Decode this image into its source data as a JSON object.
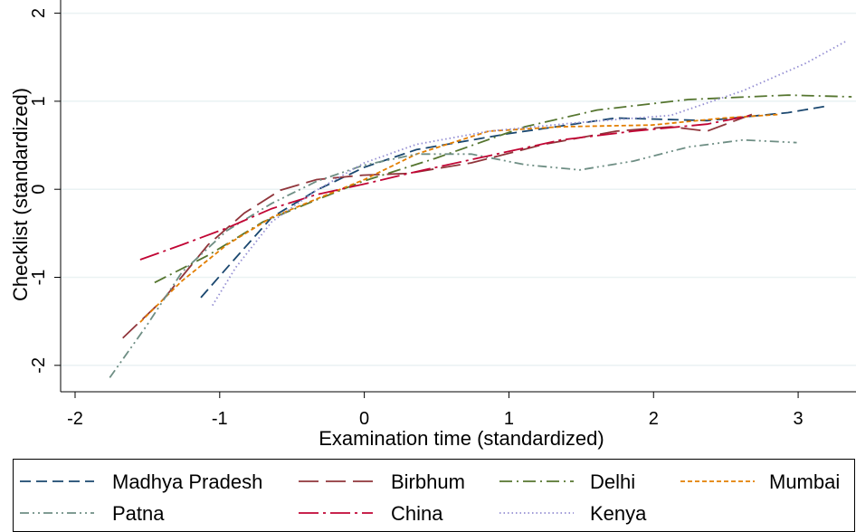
{
  "chart_data": {
    "type": "line",
    "x_label": "Examination time (standardized)",
    "y_label": "Checklist (standardized)",
    "xlim": [
      -2.1,
      3.4
    ],
    "ylim": [
      -2.3,
      2.15
    ],
    "xticks": [
      -2,
      -1,
      0,
      1,
      2,
      3
    ],
    "yticks": [
      -2,
      -1,
      0,
      1,
      2
    ],
    "grid": true,
    "legend_position": "bottom",
    "series": [
      {
        "name": "Madhya Pradesh",
        "color": "#1a476f",
        "dash": "12,6",
        "x": [
          -1.13,
          -0.89,
          -0.64,
          -0.33,
          0,
          0.36,
          0.99,
          1.74,
          2.37,
          2.93,
          3.18
        ],
        "values": [
          -1.23,
          -0.78,
          -0.32,
          -0.01,
          0.25,
          0.45,
          0.63,
          0.81,
          0.78,
          0.87,
          0.94
        ]
      },
      {
        "name": "Birbhum",
        "color": "#90353b",
        "dash": "22,8",
        "x": [
          -1.67,
          -1.39,
          -1.08,
          -0.83,
          -0.58,
          -0.33,
          -0.01,
          0.3,
          0.74,
          1.24,
          1.74,
          2.12,
          2.37,
          2.68
        ],
        "values": [
          -1.69,
          -1.25,
          -0.63,
          -0.27,
          -0.01,
          0.11,
          0.16,
          0.18,
          0.3,
          0.51,
          0.66,
          0.71,
          0.66,
          0.85
        ]
      },
      {
        "name": "Delhi",
        "color": "#55752f",
        "dash": "14,5,2,5",
        "x": [
          -1.45,
          -1.08,
          -0.7,
          -0.39,
          -0.01,
          0.49,
          1.11,
          1.61,
          2.24,
          2.93,
          3.37
        ],
        "values": [
          -1.06,
          -0.75,
          -0.37,
          -0.16,
          0.09,
          0.35,
          0.71,
          0.9,
          1.02,
          1.07,
          1.05
        ]
      },
      {
        "name": "Mumbai",
        "color": "#e37e00",
        "dash": "5,3",
        "x": [
          -1.55,
          -1.26,
          -0.95,
          -0.64,
          -0.33,
          0,
          0.36,
          0.86,
          1.36,
          1.99,
          2.49,
          2.87
        ],
        "values": [
          -1.51,
          -1.04,
          -0.63,
          -0.32,
          -0.11,
          0.11,
          0.4,
          0.66,
          0.71,
          0.73,
          0.81,
          0.85
        ]
      },
      {
        "name": "Patna",
        "color": "#6e8e84",
        "dash": "10,4,2,4,2,4",
        "x": [
          -1.76,
          -1.51,
          -1.26,
          -0.95,
          -0.64,
          -0.33,
          -0.01,
          0.36,
          0.74,
          1.11,
          1.49,
          1.86,
          2.24,
          2.62,
          2.99
        ],
        "values": [
          -2.14,
          -1.56,
          -0.94,
          -0.47,
          -0.16,
          0.09,
          0.27,
          0.4,
          0.4,
          0.28,
          0.22,
          0.32,
          0.48,
          0.56,
          0.53
        ]
      },
      {
        "name": "China",
        "color": "#c10534",
        "dash": "22,5,3,5",
        "x": [
          -1.55,
          -1.26,
          -0.95,
          -0.64,
          -0.33,
          0,
          0.36,
          0.86,
          1.36,
          1.86,
          2.37,
          2.68
        ],
        "values": [
          -0.8,
          -0.63,
          -0.44,
          -0.22,
          -0.06,
          0.06,
          0.2,
          0.38,
          0.56,
          0.66,
          0.74,
          0.84
        ]
      },
      {
        "name": "Kenya",
        "color": "#938dd2",
        "dash": "1.5,3",
        "x": [
          -1.05,
          -0.89,
          -0.64,
          -0.33,
          0,
          0.36,
          0.86,
          1.49,
          2.12,
          2.62,
          3.05,
          3.34
        ],
        "values": [
          -1.32,
          -0.89,
          -0.37,
          -0.01,
          0.3,
          0.51,
          0.66,
          0.76,
          0.84,
          1.12,
          1.43,
          1.69
        ]
      }
    ]
  }
}
